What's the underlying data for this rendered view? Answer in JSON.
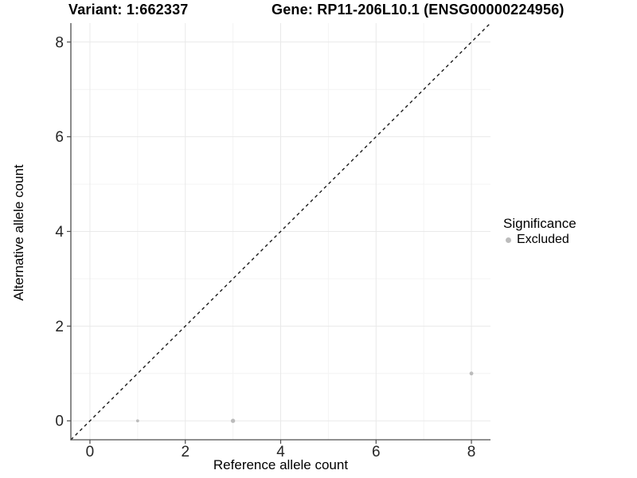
{
  "chart_data": {
    "type": "scatter",
    "titles": {
      "left": "Variant: 1:662337",
      "right": "Gene: RP11-206L10.1 (ENSG00000224956)"
    },
    "xlabel": "Reference allele count",
    "ylabel": "Alternative allele count",
    "xlim": [
      -0.4,
      8.4
    ],
    "ylim": [
      -0.4,
      8.4
    ],
    "x_ticks": [
      0,
      2,
      4,
      6,
      8
    ],
    "y_ticks": [
      0,
      2,
      4,
      6,
      8
    ],
    "x_minor": [
      1,
      3,
      5,
      7
    ],
    "y_minor": [
      1,
      3,
      5,
      7
    ],
    "grid": "major+minor",
    "identity_line": {
      "slope": 1,
      "intercept": 0,
      "style": "dashed",
      "color": "#1a1a1a"
    },
    "series": [
      {
        "name": "Excluded",
        "color": "#bcbcbc",
        "points": [
          {
            "x": 1,
            "y": 0,
            "r": 1.9
          },
          {
            "x": 3,
            "y": 0,
            "r": 2.7
          },
          {
            "x": 8,
            "y": 1,
            "r": 2.4
          }
        ]
      }
    ],
    "legend": {
      "title": "Significance",
      "position": "right",
      "entries": [
        {
          "label": "Excluded",
          "color": "#bcbcbc"
        }
      ]
    }
  },
  "colors": {
    "axis_line": "#4d4d4d",
    "grid_major": "#e9e9e9",
    "grid_minor": "#f4f4f4",
    "tick_text": "#262626"
  }
}
